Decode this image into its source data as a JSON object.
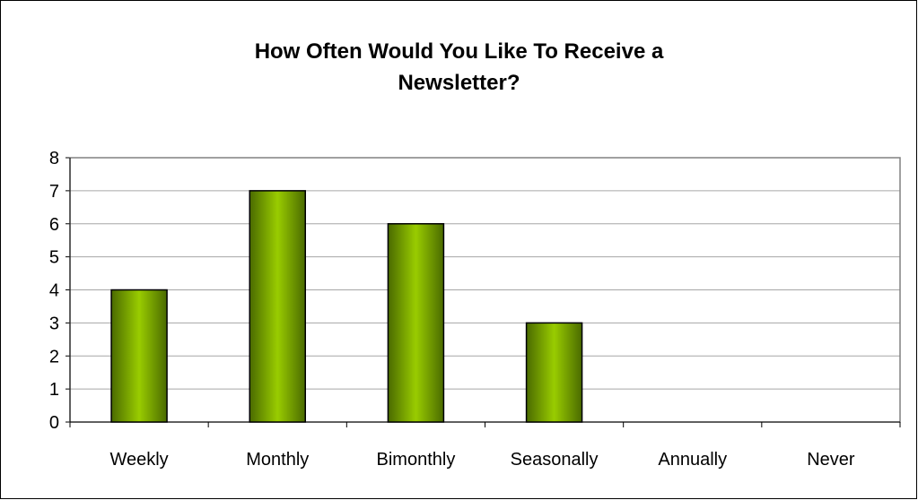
{
  "chart_data": {
    "type": "bar",
    "title_lines": [
      "How Often Would You Like To Receive a",
      "Newsletter?"
    ],
    "categories": [
      "Weekly",
      "Monthly",
      "Bimonthly",
      "Seasonally",
      "Annually",
      "Never"
    ],
    "values": [
      4,
      7,
      6,
      3,
      0,
      0
    ],
    "xlabel": "",
    "ylabel": "",
    "ylim": [
      0,
      8
    ],
    "yticks": [
      "0",
      "1",
      "2",
      "3",
      "4",
      "5",
      "6",
      "7",
      "8"
    ],
    "grid": true,
    "legend": "none",
    "colors": {
      "bar_dark": "#4a6a00",
      "bar_light": "#99cc00",
      "gridline": "#a6a6a6",
      "plot_border": "#808080",
      "axis": "#000000"
    }
  }
}
